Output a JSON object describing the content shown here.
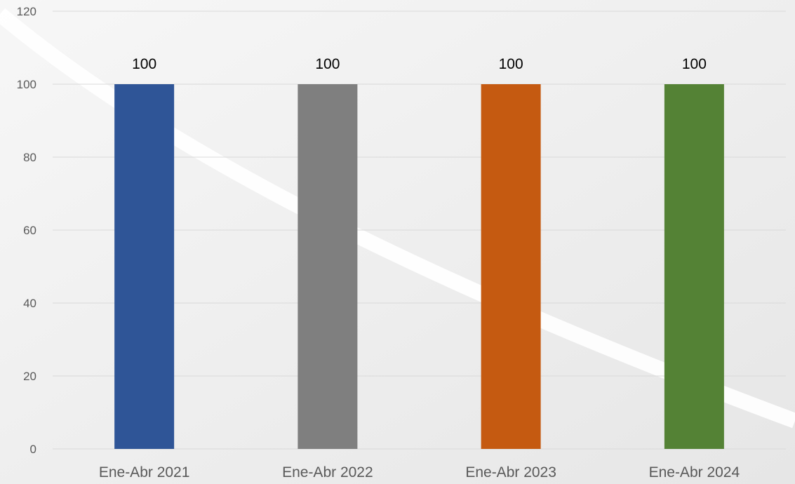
{
  "chart_data": {
    "type": "bar",
    "title": "",
    "xlabel": "",
    "ylabel": "",
    "categories": [
      "Ene-Abr 2021",
      "Ene-Abr 2022",
      "Ene-Abr 2023",
      "Ene-Abr 2024"
    ],
    "values": [
      100,
      100,
      100,
      100
    ],
    "data_labels": [
      "100",
      "100",
      "100",
      "100"
    ],
    "bar_colors": [
      "#2f5597",
      "#7f7f7f",
      "#c55a11",
      "#548235"
    ],
    "ylim": [
      0,
      120
    ],
    "yticks": [
      0,
      20,
      40,
      60,
      80,
      100,
      120
    ],
    "grid": true,
    "legend": "none"
  }
}
